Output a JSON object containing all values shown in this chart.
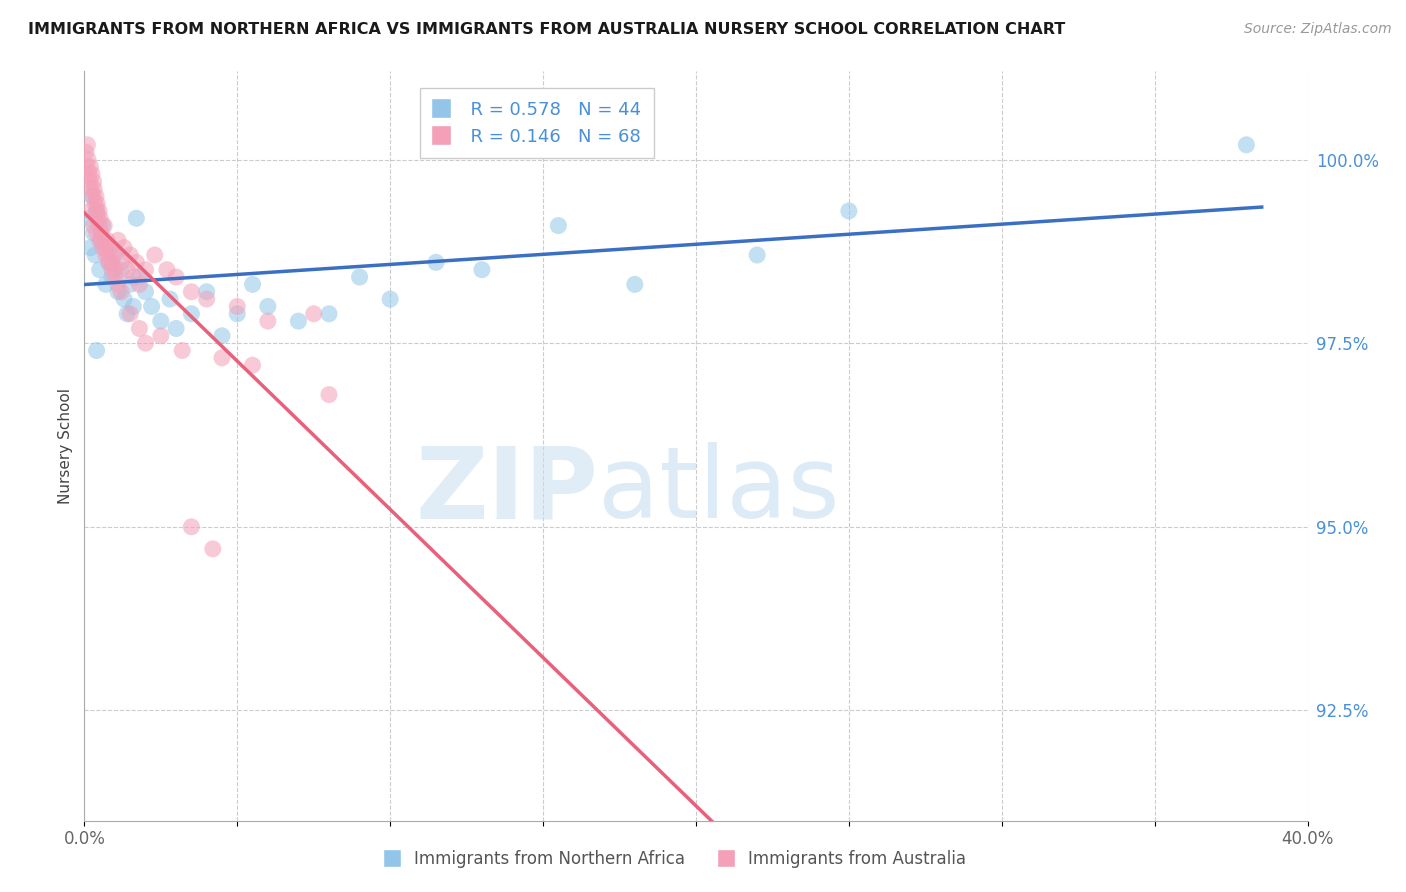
{
  "title": "IMMIGRANTS FROM NORTHERN AFRICA VS IMMIGRANTS FROM AUSTRALIA NURSERY SCHOOL CORRELATION CHART",
  "source": "Source: ZipAtlas.com",
  "xlabel_blue": "Immigrants from Northern Africa",
  "xlabel_pink": "Immigrants from Australia",
  "ylabel": "Nursery School",
  "xlim": [
    0.0,
    40.0
  ],
  "ylim": [
    91.0,
    101.2
  ],
  "yticks": [
    92.5,
    95.0,
    97.5,
    100.0
  ],
  "ytick_labels": [
    "92.5%",
    "95.0%",
    "97.5%",
    "100.0%"
  ],
  "xticks": [
    0.0,
    5.0,
    10.0,
    15.0,
    20.0,
    25.0,
    30.0,
    35.0,
    40.0
  ],
  "xtick_labels": [
    "0.0%",
    "",
    "",
    "",
    "",
    "",
    "",
    "",
    "40.0%"
  ],
  "legend_R_blue": "0.578",
  "legend_N_blue": "44",
  "legend_R_pink": "0.146",
  "legend_N_pink": "68",
  "blue_color": "#92C5E8",
  "pink_color": "#F4A0B8",
  "blue_line_color": "#3B6FC4",
  "pink_line_color": "#E8607A",
  "blue_x": [
    0.15,
    0.2,
    0.25,
    0.3,
    0.35,
    0.4,
    0.5,
    0.55,
    0.6,
    0.7,
    0.8,
    0.9,
    1.0,
    1.1,
    1.2,
    1.3,
    1.4,
    1.5,
    1.6,
    1.7,
    1.8,
    2.0,
    2.2,
    2.5,
    2.8,
    3.0,
    3.5,
    4.0,
    4.5,
    5.0,
    5.5,
    6.0,
    7.0,
    8.0,
    9.0,
    10.0,
    11.5,
    13.0,
    15.5,
    18.0,
    22.0,
    25.0,
    0.4,
    38.0
  ],
  "blue_y": [
    99.2,
    98.8,
    99.5,
    99.0,
    98.7,
    99.3,
    98.5,
    98.9,
    99.1,
    98.3,
    98.6,
    98.4,
    98.7,
    98.2,
    98.5,
    98.1,
    97.9,
    98.3,
    98.0,
    99.2,
    98.4,
    98.2,
    98.0,
    97.8,
    98.1,
    97.7,
    97.9,
    98.2,
    97.6,
    97.9,
    98.3,
    98.0,
    97.8,
    97.9,
    98.4,
    98.1,
    98.6,
    98.5,
    99.1,
    98.3,
    98.7,
    99.3,
    97.4,
    100.2
  ],
  "pink_x": [
    0.05,
    0.08,
    0.1,
    0.12,
    0.15,
    0.18,
    0.2,
    0.22,
    0.25,
    0.28,
    0.3,
    0.32,
    0.35,
    0.38,
    0.4,
    0.42,
    0.45,
    0.48,
    0.5,
    0.52,
    0.55,
    0.6,
    0.65,
    0.7,
    0.75,
    0.8,
    0.85,
    0.9,
    0.95,
    1.0,
    1.1,
    1.2,
    1.3,
    1.4,
    1.5,
    1.6,
    1.7,
    1.8,
    2.0,
    2.3,
    2.7,
    3.0,
    3.5,
    4.0,
    5.0,
    6.0,
    7.5,
    0.2,
    0.3,
    0.4,
    0.5,
    0.6,
    0.7,
    0.8,
    0.9,
    1.0,
    1.1,
    1.2,
    1.5,
    1.8,
    2.0,
    2.5,
    3.2,
    4.5,
    5.5,
    8.0,
    3.5,
    4.2
  ],
  "pink_y": [
    100.1,
    99.9,
    100.2,
    100.0,
    99.8,
    99.7,
    99.9,
    99.6,
    99.8,
    99.5,
    99.7,
    99.6,
    99.4,
    99.5,
    99.3,
    99.4,
    99.2,
    99.3,
    99.1,
    99.2,
    99.0,
    98.9,
    99.1,
    98.8,
    98.9,
    98.7,
    98.8,
    98.6,
    98.7,
    98.5,
    98.9,
    98.6,
    98.8,
    98.5,
    98.7,
    98.4,
    98.6,
    98.3,
    98.5,
    98.7,
    98.5,
    98.4,
    98.2,
    98.1,
    98.0,
    97.8,
    97.9,
    99.3,
    99.1,
    99.0,
    98.9,
    98.8,
    98.7,
    98.6,
    98.5,
    98.4,
    98.3,
    98.2,
    97.9,
    97.7,
    97.5,
    97.6,
    97.4,
    97.3,
    97.2,
    96.8,
    95.0,
    94.7
  ]
}
